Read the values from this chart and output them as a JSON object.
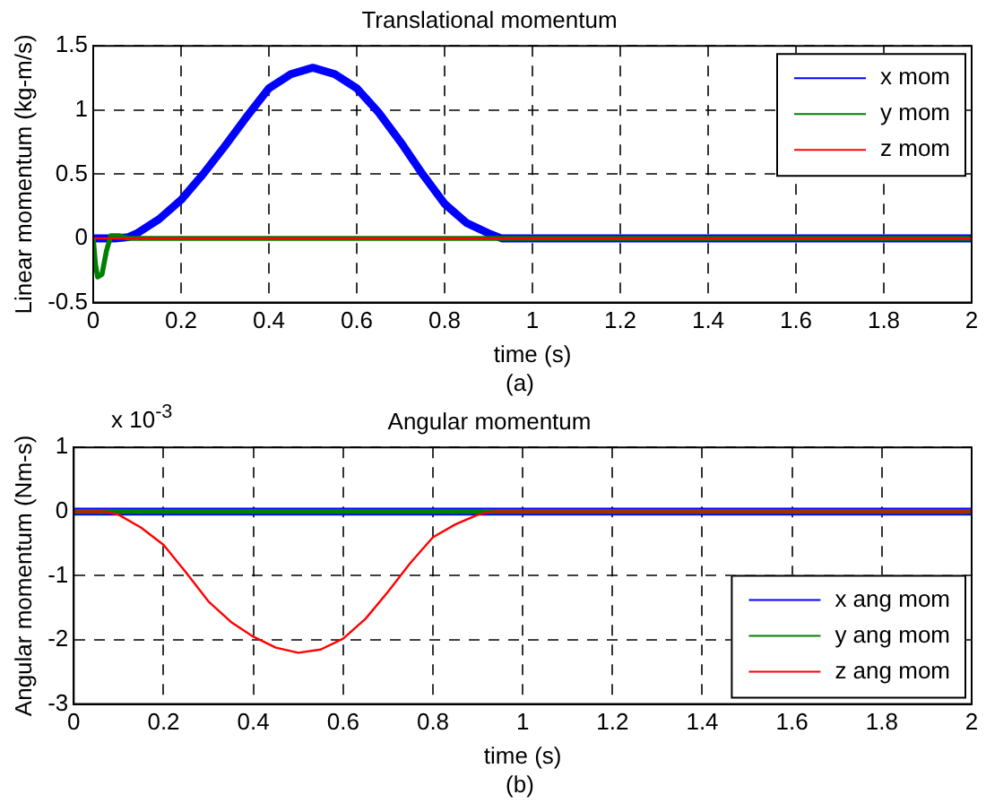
{
  "chart_data": [
    {
      "type": "line",
      "title": "Translational momentum",
      "xlabel": "time (s)",
      "ylabel": "Linear momentum (kg-m/s)",
      "annotations": [
        "(a)"
      ],
      "xlim": [
        0,
        2
      ],
      "xticks": [
        0,
        0.2,
        0.4,
        0.6,
        0.8,
        1,
        1.2,
        1.4,
        1.6,
        1.8,
        2
      ],
      "ylim": [
        -0.5,
        1.5
      ],
      "yticks": [
        -0.5,
        0,
        0.5,
        1,
        1.5
      ],
      "grid": true,
      "legend": "top right",
      "series": [
        {
          "name": "x mom",
          "color": "#0000ff",
          "x": [
            0,
            0.05,
            0.08,
            0.1,
            0.15,
            0.2,
            0.25,
            0.3,
            0.35,
            0.4,
            0.45,
            0.5,
            0.55,
            0.6,
            0.65,
            0.7,
            0.75,
            0.8,
            0.85,
            0.9,
            0.93,
            2
          ],
          "values": [
            0,
            0,
            0.01,
            0.04,
            0.15,
            0.3,
            0.5,
            0.72,
            0.95,
            1.17,
            1.28,
            1.33,
            1.28,
            1.17,
            0.98,
            0.75,
            0.5,
            0.27,
            0.12,
            0.04,
            0,
            0
          ]
        },
        {
          "name": "y mom",
          "color": "#008000",
          "x": [
            0,
            0.005,
            0.01,
            0.02,
            0.03,
            0.04,
            0.06,
            0.08,
            2
          ],
          "values": [
            0,
            -0.2,
            -0.3,
            -0.28,
            -0.1,
            0.02,
            0.02,
            0,
            0
          ]
        },
        {
          "name": "z mom",
          "color": "#ff0000",
          "x": [
            0,
            2
          ],
          "values": [
            0,
            0
          ]
        }
      ]
    },
    {
      "type": "line",
      "title": "Angular momentum",
      "xlabel": "time (s)",
      "ylabel": "Angular momentum (Nm-s)",
      "annotations": [
        "x 10$^{-3}$",
        "(b)"
      ],
      "xlim": [
        0,
        2
      ],
      "xticks": [
        0,
        0.2,
        0.4,
        0.6,
        0.8,
        1,
        1.2,
        1.4,
        1.6,
        1.8,
        2
      ],
      "ylim": [
        -3,
        1
      ],
      "yticks": [
        -3,
        -2,
        -1,
        0,
        1
      ],
      "grid": true,
      "legend": "bottom right",
      "series": [
        {
          "name": "x ang mom",
          "color": "#0000ff",
          "x": [
            0,
            2
          ],
          "values": [
            0,
            0
          ]
        },
        {
          "name": "y ang mom",
          "color": "#008000",
          "x": [
            0,
            2
          ],
          "values": [
            0,
            0
          ]
        },
        {
          "name": "z ang mom",
          "color": "#ff0000",
          "x": [
            0,
            0.07,
            0.1,
            0.15,
            0.2,
            0.25,
            0.3,
            0.35,
            0.4,
            0.45,
            0.5,
            0.55,
            0.6,
            0.65,
            0.7,
            0.75,
            0.8,
            0.85,
            0.9,
            0.93,
            2
          ],
          "values": [
            0,
            0,
            -0.05,
            -0.25,
            -0.52,
            -0.95,
            -1.4,
            -1.72,
            -1.95,
            -2.12,
            -2.2,
            -2.15,
            -1.98,
            -1.67,
            -1.25,
            -0.8,
            -0.4,
            -0.2,
            -0.05,
            0,
            0
          ]
        }
      ]
    }
  ]
}
